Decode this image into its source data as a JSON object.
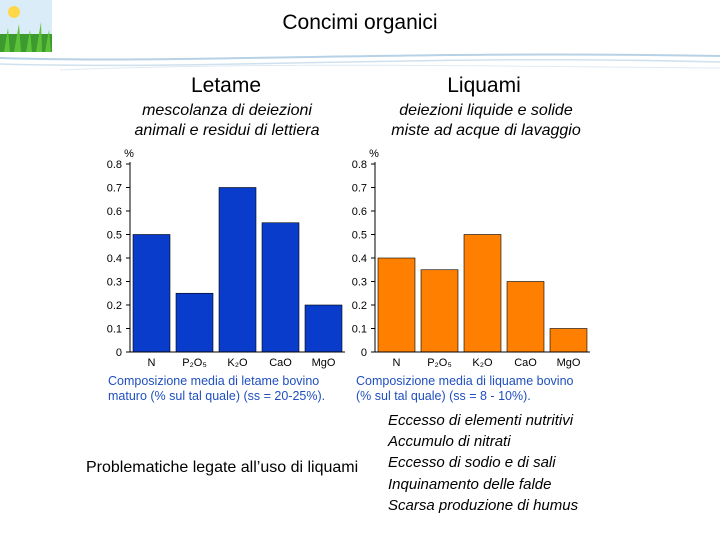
{
  "slide": {
    "title": "Concimi organici"
  },
  "left": {
    "heading": "Letame",
    "description_line1": "mescolanza di deiezioni",
    "description_line2": "animali e residui di lettiera",
    "caption_line1": "Composizione media di letame bovino",
    "caption_line2": "maturo (% sul tal quale) (ss = 20-25%)."
  },
  "right": {
    "heading": "Liquami",
    "description_line1": "deiezioni liquide e solide",
    "description_line2": "miste ad acque di lavaggio",
    "caption_line1": "Composizione media di liquame bovino",
    "caption_line2": "(% sul tal quale) (ss = 8 - 10%)."
  },
  "bottom_text": "Problematiche legate all’uso di liquami",
  "issues": [
    "Eccesso di elementi nutritivi",
    "Accumulo di nitrati",
    "Eccesso di sodio e di sali",
    "Inquinamento delle falde",
    "Scarsa produzione di humus"
  ],
  "colors": {
    "letame_bar": "#0a3ccc",
    "liquami_bar": "#ff8000",
    "caption": "#1f4fbf"
  },
  "chart_data": [
    {
      "type": "bar",
      "title": "",
      "ylabel": "%",
      "categories": [
        "N",
        "P₂O₅",
        "K₂O",
        "CaO",
        "MgO"
      ],
      "values": [
        0.5,
        0.25,
        0.7,
        0.55,
        0.2
      ],
      "ylim": [
        0,
        0.8
      ],
      "yticks": [
        "0",
        "0.1",
        "0.2",
        "0.3",
        "0.4",
        "0.5",
        "0.6",
        "0.7",
        "0.8"
      ],
      "color": "#0a3ccc"
    },
    {
      "type": "bar",
      "title": "",
      "ylabel": "%",
      "categories": [
        "N",
        "P₂O₅",
        "K₂O",
        "CaO",
        "MgO"
      ],
      "values": [
        0.4,
        0.35,
        0.5,
        0.3,
        0.1
      ],
      "ylim": [
        0,
        0.8
      ],
      "yticks": [
        "0",
        "0.1",
        "0.2",
        "0.3",
        "0.4",
        "0.5",
        "0.6",
        "0.7",
        "0.8"
      ],
      "color": "#ff8000"
    }
  ]
}
